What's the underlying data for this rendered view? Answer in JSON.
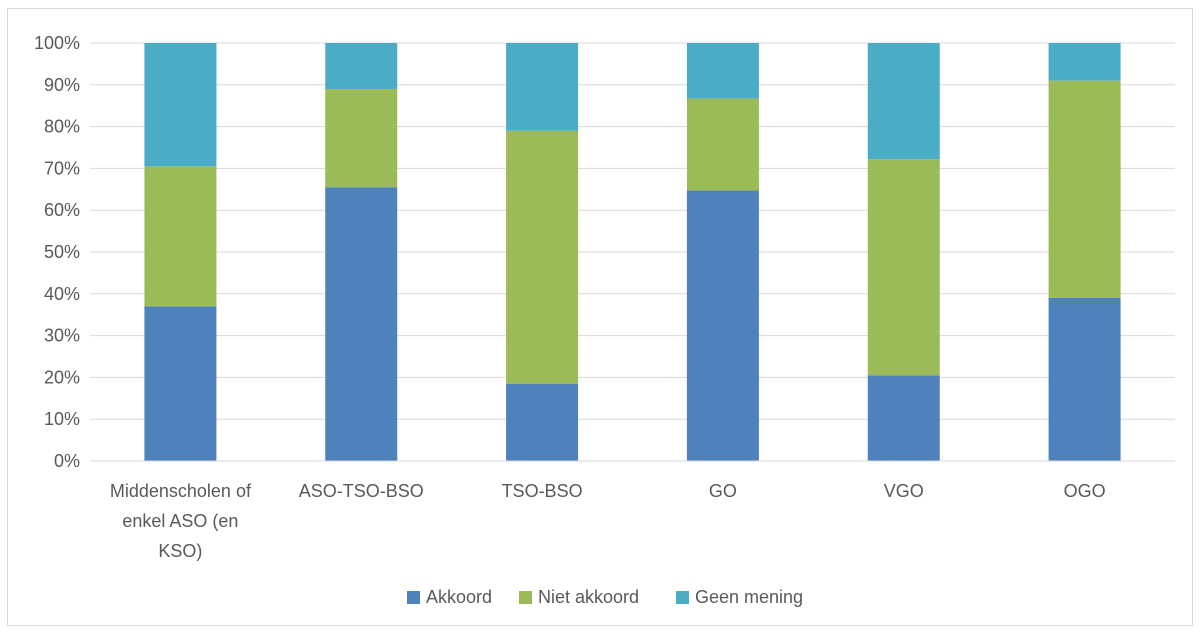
{
  "chart_data": {
    "type": "bar",
    "stacked": true,
    "title": "",
    "xlabel": "",
    "ylabel": "",
    "ylim": [
      0,
      100
    ],
    "y_ticks": [
      "0%",
      "10%",
      "20%",
      "30%",
      "40%",
      "50%",
      "60%",
      "70%",
      "80%",
      "90%",
      "100%"
    ],
    "grid": true,
    "legend_position": "bottom",
    "categories": [
      [
        "Middenscholen of",
        "enkel ASO  (en",
        "KSO)"
      ],
      [
        "ASO-TSO-BSO"
      ],
      [
        "TSO-BSO"
      ],
      [
        "GO"
      ],
      [
        "VGO"
      ],
      [
        "OGO"
      ]
    ],
    "series": [
      {
        "name": "Akkoord",
        "color": "#4f81bd",
        "values": [
          37,
          65.5,
          18.5,
          64.7,
          20.5,
          39
        ]
      },
      {
        "name": "Niet akkoord",
        "color": "#9bbb59",
        "values": [
          33.5,
          23.5,
          60.5,
          22,
          51.7,
          52
        ]
      },
      {
        "name": "Geen mening",
        "color": "#4bacc6",
        "values": [
          29.5,
          11,
          21,
          13.3,
          27.8,
          9
        ]
      }
    ]
  }
}
